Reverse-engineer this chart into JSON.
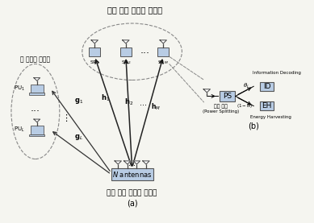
{
  "title_top": "무선 인지 사용자 수신기",
  "title_bottom_a": "무선 인지 사용자 송신기",
  "label_a": "(a)",
  "label_b": "(b)",
  "label_left_group": "기 사용자 단말기",
  "ps_desc": "전력 분할",
  "ps_desc2": "(Power Splitting)",
  "info_decode_label": "Information Decoding",
  "energy_harvest_label": "Energy Harvesting",
  "bg_color": "#f5f5f0",
  "box_color": "#b8cce4",
  "box_edge": "#555555",
  "dashed_color": "#888888"
}
